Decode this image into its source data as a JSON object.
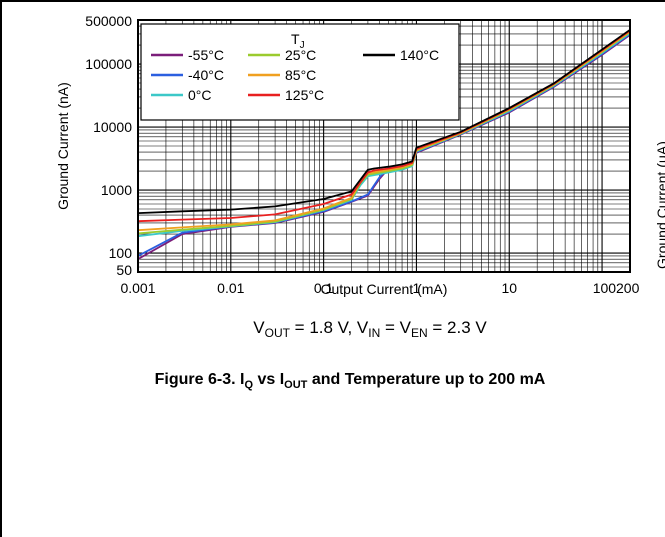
{
  "chart_data": {
    "type": "line",
    "xscale": "log",
    "yscale": "log",
    "xlabel": "Output Current (mA)",
    "ylabel": "Ground Current (nA)",
    "xlim": [
      0.001,
      200
    ],
    "ylim": [
      50,
      500000
    ],
    "x_ticks": [
      {
        "value": 0.001,
        "label": "0.001"
      },
      {
        "value": 0.01,
        "label": "0.01"
      },
      {
        "value": 0.1,
        "label": "0.1"
      },
      {
        "value": 1,
        "label": "1"
      },
      {
        "value": 10,
        "label": "10"
      },
      {
        "value": 100,
        "label": "100"
      },
      {
        "value": 200,
        "label": "200"
      }
    ],
    "y_ticks": [
      {
        "value": 50,
        "label": "50"
      },
      {
        "value": 100,
        "label": "100"
      },
      {
        "value": 1000,
        "label": "1000"
      },
      {
        "value": 10000,
        "label": "10000"
      },
      {
        "value": 100000,
        "label": "100000"
      },
      {
        "value": 500000,
        "label": "500000"
      }
    ],
    "grid": true,
    "legend_title_main": "T",
    "legend_title_sub": "J",
    "legend_placement": "top-left",
    "series": [
      {
        "name": "-55°C",
        "color": "#7B1E7A",
        "x": [
          0.001,
          0.003,
          0.01,
          0.03,
          0.1,
          0.2,
          0.3,
          0.4,
          0.5,
          0.7,
          0.9,
          1.0,
          3,
          10,
          30,
          100,
          200
        ],
        "y": [
          80,
          200,
          260,
          300,
          450,
          650,
          820,
          1500,
          2200,
          2300,
          2500,
          3900,
          7600,
          17000,
          43000,
          140000,
          290000
        ]
      },
      {
        "name": "-40°C",
        "color": "#2B5FE0",
        "x": [
          0.001,
          0.003,
          0.01,
          0.03,
          0.1,
          0.2,
          0.3,
          0.4,
          0.5,
          0.7,
          0.9,
          1.0,
          3,
          10,
          30,
          100,
          200
        ],
        "y": [
          90,
          210,
          265,
          305,
          460,
          660,
          850,
          1600,
          2250,
          2350,
          2550,
          4000,
          7700,
          17500,
          44000,
          145000,
          300000
        ]
      },
      {
        "name": "0°C",
        "color": "#3CC8C8",
        "x": [
          0.001,
          0.003,
          0.01,
          0.03,
          0.1,
          0.2,
          0.25,
          0.3,
          0.5,
          0.7,
          0.9,
          1.0,
          3,
          10,
          30,
          100,
          200
        ],
        "y": [
          185,
          225,
          265,
          310,
          480,
          700,
          1200,
          1650,
          1900,
          2100,
          2400,
          4100,
          7800,
          18000,
          45000,
          150000,
          310000
        ]
      },
      {
        "name": "25°C",
        "color": "#9BCB2E",
        "x": [
          0.001,
          0.003,
          0.01,
          0.03,
          0.1,
          0.2,
          0.25,
          0.3,
          0.5,
          0.7,
          0.9,
          1.0,
          3,
          10,
          30,
          100,
          200
        ],
        "y": [
          205,
          235,
          270,
          315,
          490,
          720,
          1300,
          1750,
          2000,
          2200,
          2500,
          4200,
          7900,
          18500,
          46000,
          155000,
          320000
        ]
      },
      {
        "name": "85°C",
        "color": "#F0A020",
        "x": [
          0.001,
          0.003,
          0.01,
          0.03,
          0.1,
          0.2,
          0.25,
          0.3,
          0.5,
          0.7,
          0.9,
          1.0,
          3,
          10,
          30,
          100,
          200
        ],
        "y": [
          230,
          255,
          285,
          330,
          510,
          750,
          1400,
          1850,
          2100,
          2300,
          2600,
          4300,
          8000,
          19000,
          47000,
          160000,
          330000
        ]
      },
      {
        "name": "125°C",
        "color": "#E82020",
        "x": [
          0.001,
          0.003,
          0.01,
          0.03,
          0.1,
          0.2,
          0.3,
          0.35,
          0.5,
          0.7,
          0.9,
          1.0,
          3,
          10,
          30,
          100,
          200
        ],
        "y": [
          320,
          340,
          360,
          410,
          600,
          850,
          1900,
          2050,
          2200,
          2400,
          2700,
          4500,
          8200,
          19500,
          48000,
          165000,
          340000
        ]
      },
      {
        "name": "140°C",
        "color": "#000000",
        "x": [
          0.001,
          0.003,
          0.01,
          0.03,
          0.1,
          0.2,
          0.3,
          0.35,
          0.5,
          0.7,
          0.9,
          1.0,
          3,
          10,
          30,
          100,
          200
        ],
        "y": [
          430,
          460,
          490,
          550,
          720,
          950,
          2100,
          2200,
          2350,
          2550,
          2850,
          4700,
          8400,
          20000,
          49000,
          170000,
          350000
        ]
      }
    ]
  },
  "subtitle_parts": {
    "v": "V",
    "out": "OUT",
    "mid1": " = 1.8 V, V",
    "in": "IN",
    "eq": " = V",
    "en": "EN",
    "end": " = 2.3 V"
  },
  "caption_parts": {
    "pre": "Figure 6-3. I",
    "q": "Q",
    "mid": " vs I",
    "out": "OUT",
    "end": " and Temperature up to 200 mA"
  },
  "clipped_right_label": "Ground Current (μA)"
}
